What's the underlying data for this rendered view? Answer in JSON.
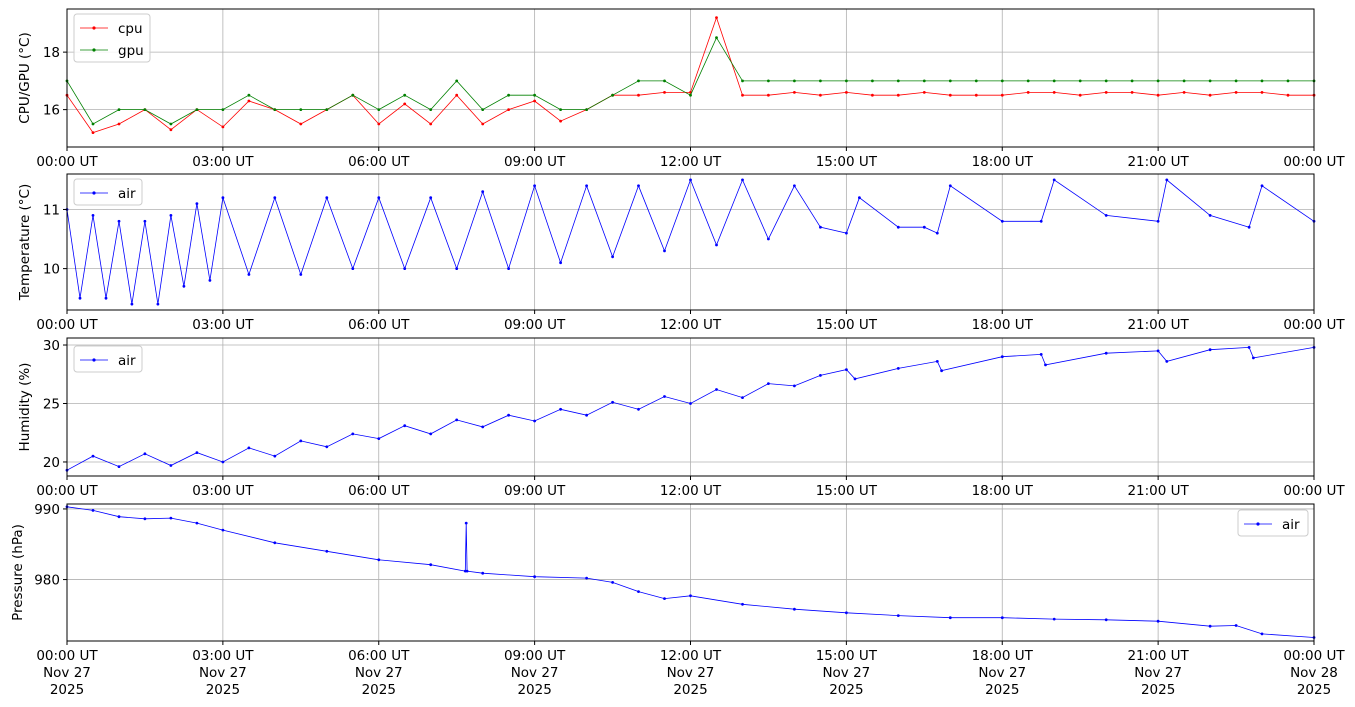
{
  "figure": {
    "background": "#ffffff",
    "grid_color": "#b0b0b0"
  },
  "chart_data": [
    {
      "type": "line",
      "ylabel": "CPU/GPU (°C)",
      "ylim": [
        14.7,
        19.5
      ],
      "yticks": [
        16,
        18
      ],
      "xlim": [
        "2025-11-27T00:00Z",
        "2025-11-28T00:00Z"
      ],
      "xticks": [
        "00:00 UT",
        "03:00 UT",
        "06:00 UT",
        "09:00 UT",
        "12:00 UT",
        "15:00 UT",
        "18:00 UT",
        "21:00 UT",
        "00:00 UT"
      ],
      "grid": true,
      "legend": "upper left",
      "series": [
        {
          "name": "cpu",
          "color": "#ff0000",
          "x": [
            "00:00",
            "00:30",
            "01:00",
            "01:30",
            "02:00",
            "02:30",
            "03:00",
            "03:30",
            "04:00",
            "04:30",
            "05:00",
            "05:30",
            "06:00",
            "06:30",
            "07:00",
            "07:30",
            "08:00",
            "08:30",
            "09:00",
            "09:30",
            "10:00",
            "10:30",
            "11:00",
            "11:30",
            "12:00",
            "12:30",
            "13:00",
            "13:30",
            "14:00",
            "14:30",
            "15:00",
            "15:30",
            "16:00",
            "16:30",
            "17:00",
            "17:30",
            "18:00",
            "18:30",
            "19:00",
            "19:30",
            "20:00",
            "20:30",
            "21:00",
            "21:30",
            "22:00",
            "22:30",
            "23:00",
            "23:30",
            "24:00"
          ],
          "values": [
            16.5,
            15.2,
            15.5,
            16.0,
            15.3,
            16.0,
            15.4,
            16.3,
            16.0,
            15.5,
            16.0,
            16.5,
            15.5,
            16.2,
            15.5,
            16.5,
            15.5,
            16.0,
            16.3,
            15.6,
            16.0,
            16.5,
            16.5,
            16.6,
            16.6,
            19.2,
            16.5,
            16.5,
            16.6,
            16.5,
            16.6,
            16.5,
            16.5,
            16.6,
            16.5,
            16.5,
            16.5,
            16.6,
            16.6,
            16.5,
            16.6,
            16.6,
            16.5,
            16.6,
            16.5,
            16.6,
            16.6,
            16.5,
            16.5
          ]
        },
        {
          "name": "gpu",
          "color": "#008000",
          "x": [
            "00:00",
            "00:30",
            "01:00",
            "01:30",
            "02:00",
            "02:30",
            "03:00",
            "03:30",
            "04:00",
            "04:30",
            "05:00",
            "05:30",
            "06:00",
            "06:30",
            "07:00",
            "07:30",
            "08:00",
            "08:30",
            "09:00",
            "09:30",
            "10:00",
            "10:30",
            "11:00",
            "11:30",
            "12:00",
            "12:30",
            "13:00",
            "13:30",
            "14:00",
            "14:30",
            "15:00",
            "15:30",
            "16:00",
            "16:30",
            "17:00",
            "17:30",
            "18:00",
            "18:30",
            "19:00",
            "19:30",
            "20:00",
            "20:30",
            "21:00",
            "21:30",
            "22:00",
            "22:30",
            "23:00",
            "23:30",
            "24:00"
          ],
          "values": [
            17.0,
            15.5,
            16.0,
            16.0,
            15.5,
            16.0,
            16.0,
            16.5,
            16.0,
            16.0,
            16.0,
            16.5,
            16.0,
            16.5,
            16.0,
            17.0,
            16.0,
            16.5,
            16.5,
            16.0,
            16.0,
            16.5,
            17.0,
            17.0,
            16.5,
            18.5,
            17.0,
            17.0,
            17.0,
            17.0,
            17.0,
            17.0,
            17.0,
            17.0,
            17.0,
            17.0,
            17.0,
            17.0,
            17.0,
            17.0,
            17.0,
            17.0,
            17.0,
            17.0,
            17.0,
            17.0,
            17.0,
            17.0,
            17.0
          ]
        }
      ]
    },
    {
      "type": "line",
      "ylabel": "Temperature (°C)",
      "ylim": [
        9.3,
        11.6
      ],
      "yticks": [
        10,
        11
      ],
      "xlim": [
        "2025-11-27T00:00Z",
        "2025-11-28T00:00Z"
      ],
      "xticks": [
        "00:00 UT",
        "03:00 UT",
        "06:00 UT",
        "09:00 UT",
        "12:00 UT",
        "15:00 UT",
        "18:00 UT",
        "21:00 UT",
        "00:00 UT"
      ],
      "grid": true,
      "legend": "upper left",
      "series": [
        {
          "name": "air",
          "color": "#0000ff",
          "x": [
            "00:00",
            "00:15",
            "00:30",
            "00:45",
            "01:00",
            "01:15",
            "01:30",
            "01:45",
            "02:00",
            "02:15",
            "02:30",
            "02:45",
            "03:00",
            "03:30",
            "04:00",
            "04:30",
            "05:00",
            "05:30",
            "06:00",
            "06:30",
            "07:00",
            "07:30",
            "08:00",
            "08:30",
            "09:00",
            "09:30",
            "10:00",
            "10:30",
            "11:00",
            "11:30",
            "12:00",
            "12:30",
            "13:00",
            "13:30",
            "14:00",
            "14:30",
            "15:00",
            "15:15",
            "16:00",
            "16:30",
            "16:45",
            "17:00",
            "18:00",
            "18:45",
            "19:00",
            "20:00",
            "21:00",
            "21:10",
            "22:00",
            "22:45",
            "23:00",
            "24:00"
          ],
          "values": [
            11.0,
            9.5,
            10.9,
            9.5,
            10.8,
            9.4,
            10.8,
            9.4,
            10.9,
            9.7,
            11.1,
            9.8,
            11.2,
            9.9,
            11.2,
            9.9,
            11.2,
            10.0,
            11.2,
            10.0,
            11.2,
            10.0,
            11.3,
            10.0,
            11.4,
            10.1,
            11.4,
            10.2,
            11.4,
            10.3,
            11.5,
            10.4,
            11.5,
            10.5,
            11.4,
            10.7,
            10.6,
            11.2,
            10.7,
            10.7,
            10.6,
            11.4,
            10.8,
            10.8,
            11.5,
            10.9,
            10.8,
            11.5,
            10.9,
            10.7,
            11.4,
            10.8
          ]
        }
      ]
    },
    {
      "type": "line",
      "ylabel": "Humidity (%)",
      "ylim": [
        18.8,
        30.6
      ],
      "yticks": [
        20,
        25,
        30
      ],
      "xlim": [
        "2025-11-27T00:00Z",
        "2025-11-28T00:00Z"
      ],
      "xticks": [
        "00:00 UT",
        "03:00 UT",
        "06:00 UT",
        "09:00 UT",
        "12:00 UT",
        "15:00 UT",
        "18:00 UT",
        "21:00 UT",
        "00:00 UT"
      ],
      "grid": true,
      "legend": "upper left",
      "series": [
        {
          "name": "air",
          "color": "#0000ff",
          "x": [
            "00:00",
            "00:30",
            "01:00",
            "01:30",
            "02:00",
            "02:30",
            "03:00",
            "03:30",
            "04:00",
            "04:30",
            "05:00",
            "05:30",
            "06:00",
            "06:30",
            "07:00",
            "07:30",
            "08:00",
            "08:30",
            "09:00",
            "09:30",
            "10:00",
            "10:30",
            "11:00",
            "11:30",
            "12:00",
            "12:30",
            "13:00",
            "13:30",
            "14:00",
            "14:30",
            "15:00",
            "15:10",
            "16:00",
            "16:45",
            "16:50",
            "18:00",
            "18:45",
            "18:50",
            "20:00",
            "21:00",
            "21:10",
            "22:00",
            "22:45",
            "22:50",
            "24:00"
          ],
          "values": [
            19.3,
            20.5,
            19.6,
            20.7,
            19.7,
            20.8,
            20.0,
            21.2,
            20.5,
            21.8,
            21.3,
            22.4,
            22.0,
            23.1,
            22.4,
            23.6,
            23.0,
            24.0,
            23.5,
            24.5,
            24.0,
            25.1,
            24.5,
            25.6,
            25.0,
            26.2,
            25.5,
            26.7,
            26.5,
            27.4,
            27.9,
            27.1,
            28.0,
            28.6,
            27.8,
            29.0,
            29.2,
            28.3,
            29.3,
            29.5,
            28.6,
            29.6,
            29.8,
            28.9,
            29.8
          ]
        }
      ]
    },
    {
      "type": "line",
      "ylabel": "Pressure (hPa)",
      "ylim": [
        971.3,
        990.7
      ],
      "yticks": [
        980,
        990
      ],
      "xlim": [
        "2025-11-27T00:00Z",
        "2025-11-28T00:00Z"
      ],
      "xticks": [
        "00:00 UT\nNov 27\n2025",
        "03:00 UT\nNov 27\n2025",
        "06:00 UT\nNov 27\n2025",
        "09:00 UT\nNov 27\n2025",
        "12:00 UT\nNov 27\n2025",
        "15:00 UT\nNov 27\n2025",
        "18:00 UT\nNov 27\n2025",
        "21:00 UT\nNov 27\n2025",
        "00:00 UT\nNov 28\n2025"
      ],
      "grid": true,
      "legend": "upper right",
      "series": [
        {
          "name": "air",
          "color": "#0000ff",
          "x": [
            "00:00",
            "00:30",
            "01:00",
            "01:30",
            "02:00",
            "02:30",
            "03:00",
            "04:00",
            "05:00",
            "06:00",
            "07:00",
            "07:40",
            "07:41",
            "07:42",
            "08:00",
            "09:00",
            "10:00",
            "10:30",
            "11:00",
            "11:30",
            "12:00",
            "13:00",
            "14:00",
            "15:00",
            "16:00",
            "17:00",
            "18:00",
            "19:00",
            "20:00",
            "21:00",
            "22:00",
            "22:30",
            "23:00",
            "24:00"
          ],
          "values": [
            990.3,
            989.8,
            988.9,
            988.6,
            988.7,
            988.0,
            987.0,
            985.2,
            984.0,
            982.8,
            982.1,
            981.2,
            988.0,
            981.2,
            980.9,
            980.4,
            980.2,
            979.6,
            978.3,
            977.3,
            977.7,
            976.5,
            975.8,
            975.3,
            974.9,
            974.6,
            974.6,
            974.4,
            974.3,
            974.1,
            973.4,
            973.5,
            972.3,
            971.8
          ]
        }
      ]
    }
  ]
}
